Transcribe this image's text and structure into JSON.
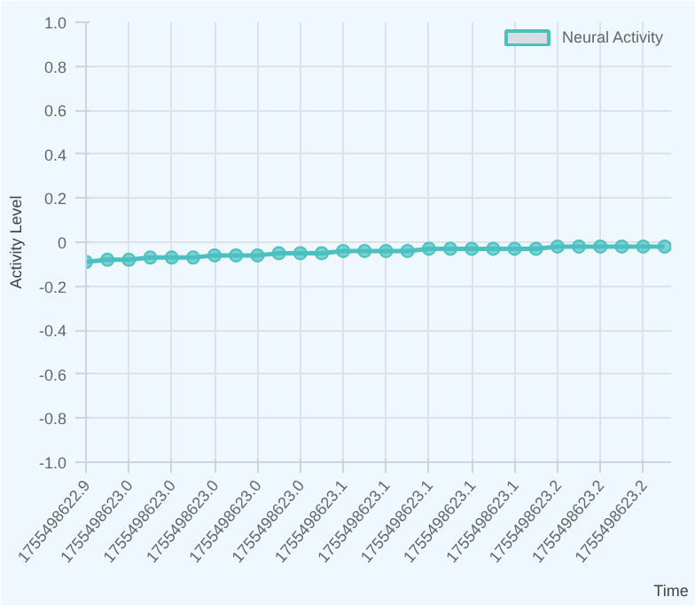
{
  "chart_data": {
    "type": "line",
    "xlabel": "Time",
    "ylabel": "Activity Level",
    "categories": [
      "1755498622.9",
      null,
      "1755498623.0",
      null,
      "1755498623.0",
      null,
      "1755498623.0",
      null,
      "1755498623.0",
      null,
      "1755498623.0",
      null,
      "1755498623.1",
      null,
      "1755498623.1",
      null,
      "1755498623.1",
      null,
      "1755498623.1",
      null,
      "1755498623.1",
      null,
      "1755498623.2",
      null,
      "1755498623.2",
      null,
      "1755498623.2",
      null
    ],
    "series": [
      {
        "name": "Neural Activity",
        "color": "#4bc0c0",
        "values": [
          -0.09,
          -0.08,
          -0.08,
          -0.07,
          -0.07,
          -0.07,
          -0.06,
          -0.06,
          -0.06,
          -0.05,
          -0.05,
          -0.05,
          -0.04,
          -0.04,
          -0.04,
          -0.04,
          -0.03,
          -0.03,
          -0.03,
          -0.03,
          -0.03,
          -0.03,
          -0.02,
          -0.02,
          -0.02,
          -0.02,
          -0.02,
          -0.02
        ]
      }
    ],
    "ylim": [
      -1,
      1
    ],
    "yticks": [
      {
        "value": -1,
        "label": "-1.0"
      },
      -0.8,
      -0.6,
      -0.4,
      -0.2,
      0,
      0.2,
      0.4,
      0.6,
      0.8,
      {
        "value": 1,
        "label": "1.0"
      }
    ],
    "grid": true,
    "legend": "top right",
    "marker": "circle",
    "line_style": "solid"
  }
}
